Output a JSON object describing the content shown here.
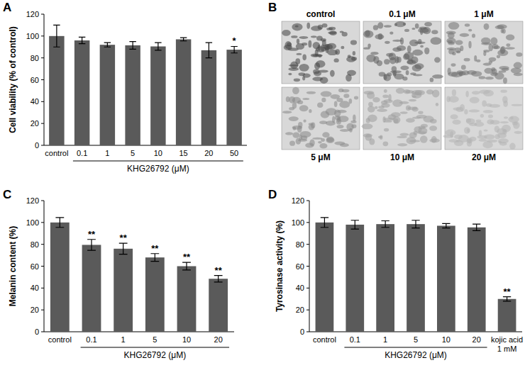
{
  "chart_data": [
    {
      "type": "bar",
      "title": "A",
      "ylabel": "Cell viability (% of control)",
      "xlabel": "KHG26792 (μM)",
      "categories": [
        "control",
        "0.1",
        "1",
        "5",
        "10",
        "15",
        "20",
        "50"
      ],
      "values": [
        100,
        96,
        92,
        91.5,
        90.5,
        97,
        87,
        87.5
      ],
      "errors": [
        10,
        3,
        2,
        3.5,
        3.5,
        1.5,
        7,
        3
      ],
      "significance": [
        null,
        null,
        null,
        null,
        null,
        null,
        null,
        "*"
      ],
      "color": "#5a5a5a",
      "ylim": [
        0,
        120
      ],
      "yticks": [
        0,
        20,
        40,
        60,
        80,
        100,
        120
      ],
      "grid": false
    },
    {
      "type": "bar",
      "title": "C",
      "ylabel": "Melanin content (%)",
      "xlabel": "KHG26792 (μM)",
      "categories": [
        "control",
        "0.1",
        "1",
        "5",
        "10",
        "20"
      ],
      "values": [
        100,
        79.5,
        76,
        68,
        60,
        48.5
      ],
      "errors": [
        4.5,
        5,
        5,
        3.5,
        3.5,
        3
      ],
      "significance": [
        null,
        "**",
        "**",
        "**",
        "**",
        "**"
      ],
      "color": "#5a5a5a",
      "ylim": [
        0,
        120
      ],
      "yticks": [
        0,
        20,
        40,
        60,
        80,
        100,
        120
      ],
      "grid": false
    },
    {
      "type": "bar",
      "title": "D",
      "ylabel": "Tyrosinase activity (%)",
      "xlabel": "KHG26792 (μM)",
      "categories": [
        "control",
        "0.1",
        "1",
        "5",
        "10",
        "20",
        "kojic acid\n1 mM"
      ],
      "values": [
        100,
        98,
        98.5,
        98.5,
        97,
        95.5,
        30
      ],
      "errors": [
        4.5,
        4,
        3,
        3.5,
        2,
        3,
        2
      ],
      "significance": [
        null,
        null,
        null,
        null,
        null,
        null,
        "**"
      ],
      "color": "#5a5a5a",
      "ylim": [
        0,
        120
      ],
      "yticks": [
        0,
        20,
        40,
        60,
        80,
        100,
        120
      ],
      "grid": false
    }
  ],
  "image_panel": {
    "title": "B",
    "labels": [
      "control",
      "0.1 μM",
      "1 μM",
      "5 μM",
      "10 μM",
      "20 μM"
    ]
  }
}
